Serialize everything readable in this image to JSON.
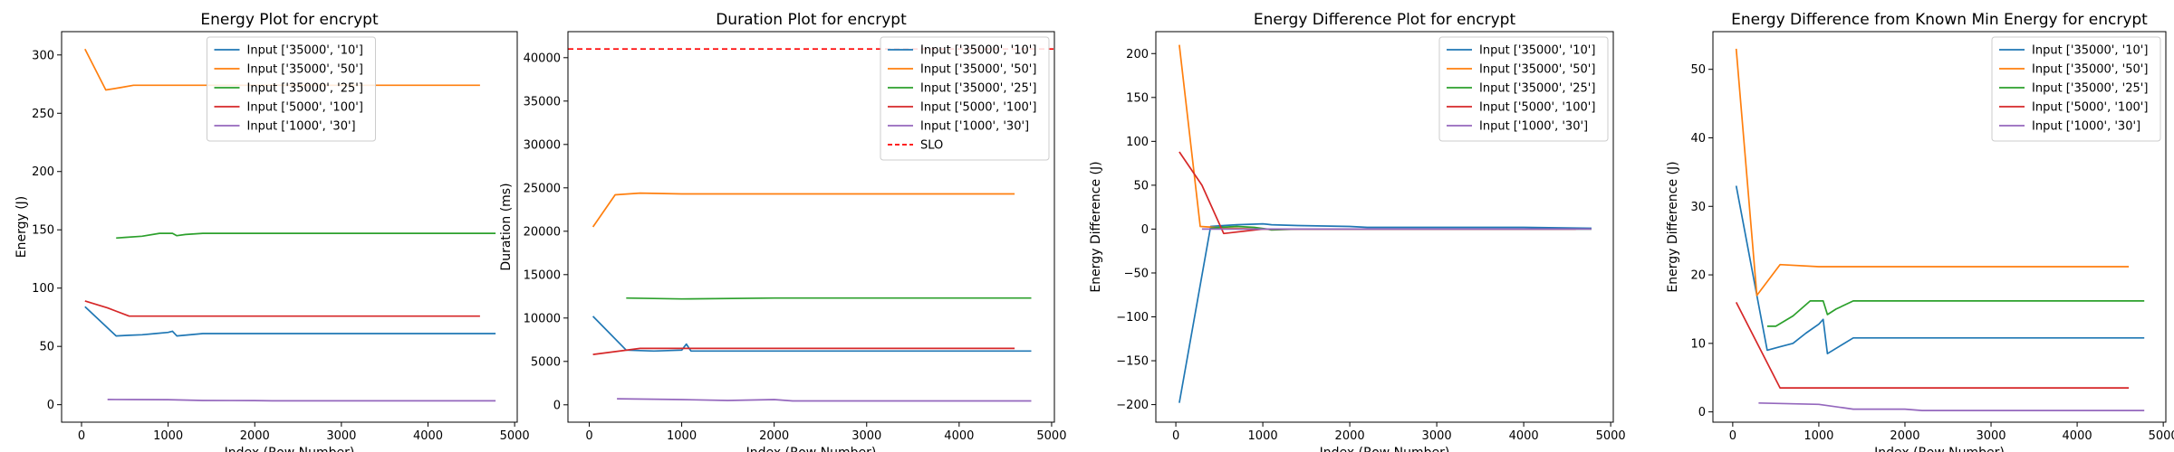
{
  "chart_data": [
    {
      "type": "line",
      "title": "Energy Plot for encrypt",
      "xlabel": "Index (Row Number)",
      "ylabel": "Energy (J)",
      "xlim": [
        -230,
        5030
      ],
      "ylim": [
        -15,
        320
      ],
      "xticks": [
        0,
        1000,
        2000,
        3000,
        4000,
        5000
      ],
      "yticks": [
        0,
        50,
        100,
        150,
        200,
        250,
        300
      ],
      "legend_loc": "upper-center",
      "series": [
        {
          "name": "Input ['35000', '10']",
          "color": "#1f77b4",
          "x": [
            40,
            400,
            550,
            700,
            850,
            1000,
            1050,
            1100,
            1400,
            2000,
            3000,
            4000,
            4780
          ],
          "y": [
            84,
            59,
            59.5,
            60,
            61,
            62,
            63,
            59,
            61,
            61,
            61,
            61,
            61
          ]
        },
        {
          "name": "Input ['35000', '50']",
          "color": "#ff7f0e",
          "x": [
            40,
            280,
            450,
            600,
            1000,
            1500,
            2000,
            3000,
            4000,
            4600
          ],
          "y": [
            305,
            270,
            272,
            274,
            274,
            274,
            274,
            274,
            274,
            274
          ]
        },
        {
          "name": "Input ['35000', '25']",
          "color": "#2ca02c",
          "x": [
            400,
            500,
            700,
            900,
            1050,
            1100,
            1200,
            1400,
            2000,
            3000,
            4000,
            4780
          ],
          "y": [
            143,
            143.5,
            144.5,
            147,
            147,
            145,
            146,
            147,
            147,
            147,
            147,
            147
          ]
        },
        {
          "name": "Input ['5000', '100']",
          "color": "#d62728",
          "x": [
            40,
            300,
            550,
            1000,
            2000,
            3000,
            4000,
            4600
          ],
          "y": [
            89,
            83,
            76,
            76,
            76,
            76,
            76,
            76
          ]
        },
        {
          "name": "Input ['1000', '30']",
          "color": "#9467bd",
          "x": [
            300,
            600,
            1000,
            1400,
            2000,
            2200,
            3000,
            4000,
            4780
          ],
          "y": [
            4.5,
            4.4,
            4.3,
            3.6,
            3.5,
            3.3,
            3.3,
            3.3,
            3.3
          ]
        }
      ]
    },
    {
      "type": "line",
      "title": "Duration Plot for encrypt",
      "xlabel": "Index (Row Number)",
      "ylabel": "Duration (ms)",
      "xlim": [
        -230,
        5030
      ],
      "ylim": [
        -2000,
        43000
      ],
      "xticks": [
        0,
        1000,
        2000,
        3000,
        4000,
        5000
      ],
      "yticks": [
        0,
        5000,
        10000,
        15000,
        20000,
        25000,
        30000,
        35000,
        40000
      ],
      "legend_loc": "upper-right",
      "series": [
        {
          "name": "Input ['35000', '10']",
          "color": "#1f77b4",
          "x": [
            40,
            400,
            700,
            1000,
            1050,
            1100,
            2000,
            3000,
            4000,
            4780
          ],
          "y": [
            10200,
            6300,
            6200,
            6300,
            7000,
            6200,
            6200,
            6200,
            6200,
            6200
          ]
        },
        {
          "name": "Input ['35000', '50']",
          "color": "#ff7f0e",
          "x": [
            40,
            280,
            550,
            1000,
            2000,
            3000,
            4000,
            4600
          ],
          "y": [
            20500,
            24200,
            24400,
            24300,
            24300,
            24300,
            24300,
            24300
          ]
        },
        {
          "name": "Input ['35000', '25']",
          "color": "#2ca02c",
          "x": [
            400,
            1000,
            2000,
            3000,
            4000,
            4780
          ],
          "y": [
            12300,
            12200,
            12300,
            12300,
            12300,
            12300
          ]
        },
        {
          "name": "Input ['5000', '100']",
          "color": "#d62728",
          "x": [
            40,
            550,
            1000,
            2000,
            3000,
            4000,
            4600
          ],
          "y": [
            5800,
            6500,
            6500,
            6500,
            6500,
            6500,
            6500
          ]
        },
        {
          "name": "Input ['1000', '30']",
          "color": "#9467bd",
          "x": [
            300,
            1000,
            1500,
            2000,
            2200,
            3000,
            4000,
            4780
          ],
          "y": [
            700,
            600,
            500,
            600,
            450,
            450,
            450,
            450
          ]
        }
      ],
      "reference_lines": [
        {
          "name": "SLO",
          "color": "#ff0000",
          "y": 41000,
          "style": "dashed"
        }
      ]
    },
    {
      "type": "line",
      "title": "Energy Difference Plot for encrypt",
      "xlabel": "Index (Row Number)",
      "ylabel": "Energy Difference (J)",
      "xlim": [
        -230,
        5030
      ],
      "ylim": [
        -220,
        225
      ],
      "xticks": [
        0,
        1000,
        2000,
        3000,
        4000,
        5000
      ],
      "yticks": [
        -200,
        -150,
        -100,
        -50,
        0,
        50,
        100,
        150,
        200
      ],
      "legend_loc": "upper-right",
      "series": [
        {
          "name": "Input ['35000', '10']",
          "color": "#1f77b4",
          "x": [
            40,
            400,
            550,
            700,
            1000,
            1100,
            1400,
            2000,
            2200,
            3000,
            4000,
            4780
          ],
          "y": [
            -198,
            3,
            4,
            5,
            6,
            5,
            4,
            3,
            2,
            2,
            2,
            1
          ]
        },
        {
          "name": "Input ['35000', '50']",
          "color": "#ff7f0e",
          "x": [
            40,
            280,
            450,
            600,
            1000,
            2000,
            3000,
            4000,
            4600
          ],
          "y": [
            210,
            3,
            2,
            1,
            0,
            0,
            0,
            0,
            0
          ]
        },
        {
          "name": "Input ['35000', '25']",
          "color": "#2ca02c",
          "x": [
            400,
            500,
            700,
            900,
            1050,
            1100,
            1400,
            2000,
            3000,
            4000,
            4780
          ],
          "y": [
            1,
            2,
            3,
            2,
            0,
            -1,
            0,
            0,
            0,
            0,
            0
          ]
        },
        {
          "name": "Input ['5000', '100']",
          "color": "#d62728",
          "x": [
            40,
            300,
            550,
            1000,
            2000,
            3000,
            4000,
            4600
          ],
          "y": [
            88,
            50,
            -5,
            0,
            0,
            0,
            0,
            0
          ]
        },
        {
          "name": "Input ['1000', '30']",
          "color": "#9467bd",
          "x": [
            300,
            1000,
            2000,
            3000,
            4000,
            4780
          ],
          "y": [
            0,
            0,
            0,
            0,
            0,
            0
          ]
        }
      ]
    },
    {
      "type": "line",
      "title": "Energy Difference from Known Min Energy for encrypt",
      "xlabel": "Index (Row Number)",
      "ylabel": "Energy Difference (J)",
      "xlim": [
        -230,
        5030
      ],
      "ylim": [
        -1.5,
        55.5
      ],
      "xticks": [
        0,
        1000,
        2000,
        3000,
        4000,
        5000
      ],
      "yticks": [
        0,
        10,
        20,
        30,
        40,
        50
      ],
      "legend_loc": "upper-right",
      "series": [
        {
          "name": "Input ['35000', '10']",
          "color": "#1f77b4",
          "x": [
            40,
            400,
            550,
            700,
            850,
            1000,
            1050,
            1100,
            1400,
            2000,
            3000,
            4000,
            4780
          ],
          "y": [
            33,
            9,
            9.5,
            10,
            11.5,
            12.8,
            13.5,
            8.5,
            10.8,
            10.8,
            10.8,
            10.8,
            10.8
          ]
        },
        {
          "name": "Input ['35000', '50']",
          "color": "#ff7f0e",
          "x": [
            40,
            280,
            550,
            1000,
            2000,
            3000,
            4000,
            4600
          ],
          "y": [
            53,
            17,
            21.5,
            21.2,
            21.2,
            21.2,
            21.2,
            21.2
          ]
        },
        {
          "name": "Input ['35000', '25']",
          "color": "#2ca02c",
          "x": [
            400,
            500,
            700,
            900,
            1050,
            1100,
            1200,
            1400,
            2000,
            3000,
            4000,
            4780
          ],
          "y": [
            12.5,
            12.5,
            14,
            16.2,
            16.2,
            14.2,
            15,
            16.2,
            16.2,
            16.2,
            16.2,
            16.2
          ]
        },
        {
          "name": "Input ['5000', '100']",
          "color": "#d62728",
          "x": [
            40,
            550,
            1000,
            2000,
            3000,
            4000,
            4600
          ],
          "y": [
            16,
            3.5,
            3.5,
            3.5,
            3.5,
            3.5,
            3.5
          ]
        },
        {
          "name": "Input ['1000', '30']",
          "color": "#9467bd",
          "x": [
            300,
            1000,
            1400,
            2000,
            2200,
            3000,
            4000,
            4780
          ],
          "y": [
            1.3,
            1.1,
            0.4,
            0.4,
            0.2,
            0.2,
            0.2,
            0.2
          ]
        }
      ]
    }
  ]
}
